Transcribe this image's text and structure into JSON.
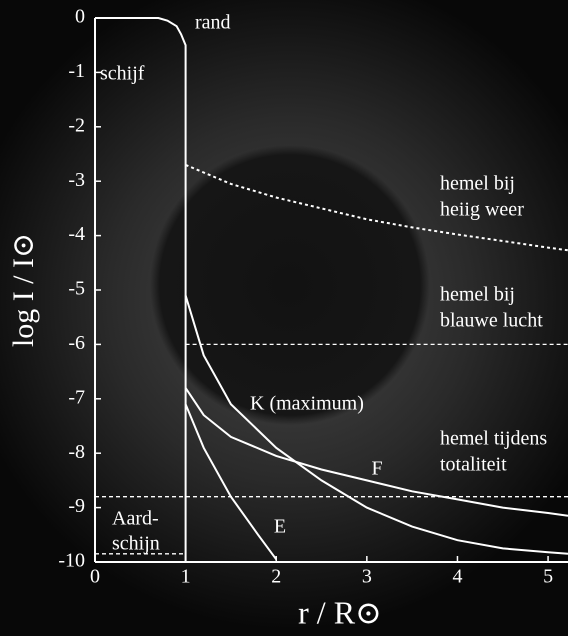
{
  "chart_data": {
    "type": "line",
    "xlabel": "r / R⊙",
    "ylabel": "log I / I⊙",
    "xlim": [
      0,
      5.22
    ],
    "ylim": [
      -10,
      0
    ],
    "xticks": [
      0,
      1,
      2,
      3,
      4,
      5
    ],
    "yticks": [
      0,
      -1,
      -2,
      -3,
      -4,
      -5,
      -6,
      -7,
      -8,
      -9,
      -10
    ],
    "annotations": [
      "rand"
    ],
    "series": [
      {
        "name": [
          "schijf"
        ],
        "color": "#ffffff",
        "dash": "solid",
        "x": [
          0,
          0.7,
          0.8,
          0.9,
          0.95,
          1,
          1
        ],
        "values": [
          0,
          0,
          -0.05,
          -0.15,
          -0.3,
          -0.5,
          -10
        ]
      },
      {
        "name": [
          "hemel bij",
          "heiig weer"
        ],
        "color": "#ffffff",
        "dash": "dotted",
        "x": [
          1,
          1.5,
          2,
          2.5,
          3,
          3.5,
          4,
          4.5,
          5,
          5.22
        ],
        "values": [
          -2.7,
          -3.05,
          -3.3,
          -3.5,
          -3.7,
          -3.85,
          -3.98,
          -4.1,
          -4.22,
          -4.27
        ]
      },
      {
        "name": [
          "hemel bij",
          "blauwe lucht"
        ],
        "color": "#ffffff",
        "dash": "dashed",
        "x": [
          1,
          5.22
        ],
        "values": [
          -6,
          -6
        ]
      },
      {
        "name": [
          "hemel tijdens",
          "totaliteit"
        ],
        "color": "#ffffff",
        "dash": "dashed",
        "x": [
          0,
          5.22
        ],
        "values": [
          -8.8,
          -8.8
        ]
      },
      {
        "name": [
          "Aard-",
          "schijn"
        ],
        "color": "#ffffff",
        "dash": "dashed",
        "x": [
          0,
          1
        ],
        "values": [
          -9.85,
          -9.85
        ]
      },
      {
        "name": [
          "K (maximum)"
        ],
        "color": "#ffffff",
        "dash": "solid",
        "x": [
          1,
          1.2,
          1.5,
          2,
          2.5,
          3,
          3.5,
          4,
          4.5,
          5,
          5.22
        ],
        "values": [
          -5.1,
          -6.2,
          -7.1,
          -7.9,
          -8.5,
          -9.0,
          -9.35,
          -9.6,
          -9.75,
          -9.82,
          -9.85
        ]
      },
      {
        "name": [
          "F"
        ],
        "color": "#ffffff",
        "dash": "solid",
        "x": [
          1,
          1.2,
          1.5,
          2,
          2.5,
          3,
          3.5,
          4,
          4.5,
          5,
          5.22
        ],
        "values": [
          -6.8,
          -7.3,
          -7.7,
          -8.05,
          -8.3,
          -8.5,
          -8.7,
          -8.85,
          -9.0,
          -9.1,
          -9.15
        ]
      },
      {
        "name": [
          "E"
        ],
        "color": "#ffffff",
        "dash": "solid",
        "x": [
          1,
          1.2,
          1.5,
          1.8,
          2
        ],
        "values": [
          -7.1,
          -7.9,
          -8.8,
          -9.5,
          -9.95
        ]
      }
    ]
  }
}
